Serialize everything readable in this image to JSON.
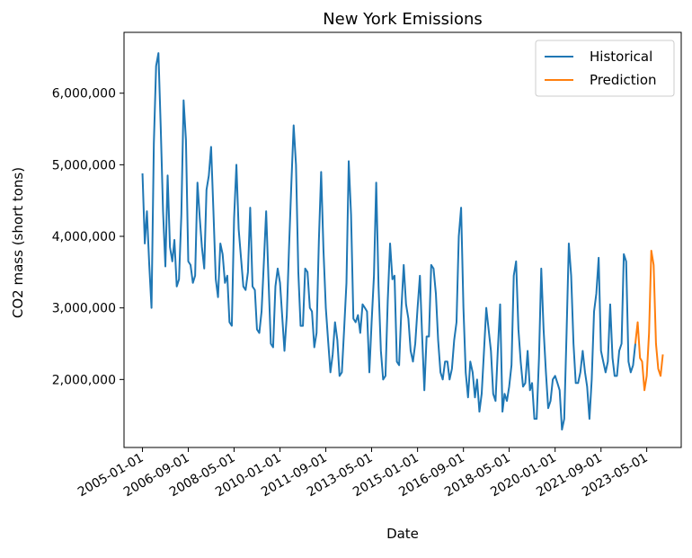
{
  "colors": {
    "historical": "#1f77b4",
    "prediction": "#ff7f0e",
    "axis": "#000000",
    "legend_border": "#cccccc",
    "background": "#ffffff"
  },
  "chart_data": {
    "type": "line",
    "title": "New York Emissions",
    "xlabel": "Date",
    "ylabel": "CO2 mass (short tons)",
    "grid": false,
    "legend_position": "top-right",
    "x_axis_kind": "date",
    "xlim": [
      "2004-05-01",
      "2024-08-01"
    ],
    "ylim": [
      1050000,
      6850000
    ],
    "x_ticks": [
      "2005-01-01",
      "2006-09-01",
      "2008-05-01",
      "2010-01-01",
      "2011-09-01",
      "2013-05-01",
      "2015-01-01",
      "2016-09-01",
      "2018-05-01",
      "2020-01-01",
      "2021-09-01",
      "2023-05-01"
    ],
    "y_ticks": [
      2000000,
      3000000,
      4000000,
      5000000,
      6000000
    ],
    "y_tick_labels": [
      "2,000,000",
      "3,000,000",
      "4,000,000",
      "5,000,000",
      "6,000,000"
    ],
    "series": [
      {
        "name": "Historical",
        "color": "#1f77b4",
        "points": [
          [
            "2005-01-01",
            4880000
          ],
          [
            "2005-02-01",
            3900000
          ],
          [
            "2005-03-01",
            4350000
          ],
          [
            "2005-04-01",
            3600000
          ],
          [
            "2005-05-01",
            3000000
          ],
          [
            "2005-06-01",
            5300000
          ],
          [
            "2005-07-01",
            6380000
          ],
          [
            "2005-08-01",
            6560000
          ],
          [
            "2005-09-01",
            5500000
          ],
          [
            "2005-10-01",
            4350000
          ],
          [
            "2005-11-01",
            3580000
          ],
          [
            "2005-12-01",
            4850000
          ],
          [
            "2006-01-01",
            3850000
          ],
          [
            "2006-02-01",
            3650000
          ],
          [
            "2006-03-01",
            3950000
          ],
          [
            "2006-04-01",
            3300000
          ],
          [
            "2006-05-01",
            3400000
          ],
          [
            "2006-06-01",
            4300000
          ],
          [
            "2006-07-01",
            5900000
          ],
          [
            "2006-08-01",
            5350000
          ],
          [
            "2006-09-01",
            3650000
          ],
          [
            "2006-10-01",
            3600000
          ],
          [
            "2006-11-01",
            3350000
          ],
          [
            "2006-12-01",
            3450000
          ],
          [
            "2007-01-01",
            4750000
          ],
          [
            "2007-02-01",
            4250000
          ],
          [
            "2007-03-01",
            3850000
          ],
          [
            "2007-04-01",
            3550000
          ],
          [
            "2007-05-01",
            4650000
          ],
          [
            "2007-06-01",
            4850000
          ],
          [
            "2007-07-01",
            5250000
          ],
          [
            "2007-08-01",
            4350000
          ],
          [
            "2007-09-01",
            3400000
          ],
          [
            "2007-10-01",
            3150000
          ],
          [
            "2007-11-01",
            3900000
          ],
          [
            "2007-12-01",
            3750000
          ],
          [
            "2008-01-01",
            3350000
          ],
          [
            "2008-02-01",
            3450000
          ],
          [
            "2008-03-01",
            2800000
          ],
          [
            "2008-04-01",
            2750000
          ],
          [
            "2008-05-01",
            4250000
          ],
          [
            "2008-06-01",
            5000000
          ],
          [
            "2008-07-01",
            4100000
          ],
          [
            "2008-08-01",
            3700000
          ],
          [
            "2008-09-01",
            3300000
          ],
          [
            "2008-10-01",
            3250000
          ],
          [
            "2008-11-01",
            3500000
          ],
          [
            "2008-12-01",
            4400000
          ],
          [
            "2009-01-01",
            3300000
          ],
          [
            "2009-02-01",
            3250000
          ],
          [
            "2009-03-01",
            2700000
          ],
          [
            "2009-04-01",
            2650000
          ],
          [
            "2009-05-01",
            2950000
          ],
          [
            "2009-06-01",
            3650000
          ],
          [
            "2009-07-01",
            4350000
          ],
          [
            "2009-08-01",
            3400000
          ],
          [
            "2009-09-01",
            2500000
          ],
          [
            "2009-10-01",
            2450000
          ],
          [
            "2009-11-01",
            3300000
          ],
          [
            "2009-12-01",
            3550000
          ],
          [
            "2010-01-01",
            3350000
          ],
          [
            "2010-02-01",
            2850000
          ],
          [
            "2010-03-01",
            2400000
          ],
          [
            "2010-04-01",
            2900000
          ],
          [
            "2010-05-01",
            3850000
          ],
          [
            "2010-06-01",
            4750000
          ],
          [
            "2010-07-01",
            5550000
          ],
          [
            "2010-08-01",
            5000000
          ],
          [
            "2010-09-01",
            3500000
          ],
          [
            "2010-10-01",
            2750000
          ],
          [
            "2010-11-01",
            2750000
          ],
          [
            "2010-12-01",
            3550000
          ],
          [
            "2011-01-01",
            3500000
          ],
          [
            "2011-02-01",
            3000000
          ],
          [
            "2011-03-01",
            2950000
          ],
          [
            "2011-04-01",
            2450000
          ],
          [
            "2011-05-01",
            2650000
          ],
          [
            "2011-06-01",
            3950000
          ],
          [
            "2011-07-01",
            4900000
          ],
          [
            "2011-08-01",
            3800000
          ],
          [
            "2011-09-01",
            3000000
          ],
          [
            "2011-10-01",
            2550000
          ],
          [
            "2011-11-01",
            2100000
          ],
          [
            "2011-12-01",
            2350000
          ],
          [
            "2012-01-01",
            2800000
          ],
          [
            "2012-02-01",
            2550000
          ],
          [
            "2012-03-01",
            2050000
          ],
          [
            "2012-04-01",
            2100000
          ],
          [
            "2012-05-01",
            2700000
          ],
          [
            "2012-06-01",
            3350000
          ],
          [
            "2012-07-01",
            5050000
          ],
          [
            "2012-08-01",
            4300000
          ],
          [
            "2012-09-01",
            2850000
          ],
          [
            "2012-10-01",
            2800000
          ],
          [
            "2012-11-01",
            2900000
          ],
          [
            "2012-12-01",
            2650000
          ],
          [
            "2013-01-01",
            3050000
          ],
          [
            "2013-02-01",
            3000000
          ],
          [
            "2013-03-01",
            2950000
          ],
          [
            "2013-04-01",
            2100000
          ],
          [
            "2013-05-01",
            2800000
          ],
          [
            "2013-06-01",
            3450000
          ],
          [
            "2013-07-01",
            4750000
          ],
          [
            "2013-08-01",
            3300000
          ],
          [
            "2013-09-01",
            2400000
          ],
          [
            "2013-10-01",
            2000000
          ],
          [
            "2013-11-01",
            2050000
          ],
          [
            "2013-12-01",
            3100000
          ],
          [
            "2014-01-01",
            3900000
          ],
          [
            "2014-02-01",
            3400000
          ],
          [
            "2014-03-01",
            3450000
          ],
          [
            "2014-04-01",
            2250000
          ],
          [
            "2014-05-01",
            2200000
          ],
          [
            "2014-06-01",
            3000000
          ],
          [
            "2014-07-01",
            3600000
          ],
          [
            "2014-08-01",
            3050000
          ],
          [
            "2014-09-01",
            2850000
          ],
          [
            "2014-10-01",
            2400000
          ],
          [
            "2014-11-01",
            2250000
          ],
          [
            "2014-12-01",
            2500000
          ],
          [
            "2015-01-01",
            3000000
          ],
          [
            "2015-02-01",
            3450000
          ],
          [
            "2015-03-01",
            2650000
          ],
          [
            "2015-04-01",
            1850000
          ],
          [
            "2015-05-01",
            2600000
          ],
          [
            "2015-06-01",
            2600000
          ],
          [
            "2015-07-01",
            3600000
          ],
          [
            "2015-08-01",
            3550000
          ],
          [
            "2015-09-01",
            3200000
          ],
          [
            "2015-10-01",
            2550000
          ],
          [
            "2015-11-01",
            2100000
          ],
          [
            "2015-12-01",
            2000000
          ],
          [
            "2016-01-01",
            2250000
          ],
          [
            "2016-02-01",
            2250000
          ],
          [
            "2016-03-01",
            2000000
          ],
          [
            "2016-04-01",
            2150000
          ],
          [
            "2016-05-01",
            2550000
          ],
          [
            "2016-06-01",
            2800000
          ],
          [
            "2016-07-01",
            4000000
          ],
          [
            "2016-08-01",
            4400000
          ],
          [
            "2016-09-01",
            3000000
          ],
          [
            "2016-10-01",
            2100000
          ],
          [
            "2016-11-01",
            1750000
          ],
          [
            "2016-12-01",
            2250000
          ],
          [
            "2017-01-01",
            2100000
          ],
          [
            "2017-02-01",
            1750000
          ],
          [
            "2017-03-01",
            2000000
          ],
          [
            "2017-04-01",
            1550000
          ],
          [
            "2017-05-01",
            1800000
          ],
          [
            "2017-06-01",
            2400000
          ],
          [
            "2017-07-01",
            3000000
          ],
          [
            "2017-08-01",
            2700000
          ],
          [
            "2017-09-01",
            2400000
          ],
          [
            "2017-10-01",
            1800000
          ],
          [
            "2017-11-01",
            1700000
          ],
          [
            "2017-12-01",
            2400000
          ],
          [
            "2018-01-01",
            3050000
          ],
          [
            "2018-02-01",
            1550000
          ],
          [
            "2018-03-01",
            1800000
          ],
          [
            "2018-04-01",
            1700000
          ],
          [
            "2018-05-01",
            1900000
          ],
          [
            "2018-06-01",
            2200000
          ],
          [
            "2018-07-01",
            3450000
          ],
          [
            "2018-08-01",
            3650000
          ],
          [
            "2018-09-01",
            2700000
          ],
          [
            "2018-10-01",
            2250000
          ],
          [
            "2018-11-01",
            1900000
          ],
          [
            "2018-12-01",
            1950000
          ],
          [
            "2019-01-01",
            2400000
          ],
          [
            "2019-02-01",
            1850000
          ],
          [
            "2019-03-01",
            1950000
          ],
          [
            "2019-04-01",
            1450000
          ],
          [
            "2019-05-01",
            1450000
          ],
          [
            "2019-06-01",
            2300000
          ],
          [
            "2019-07-01",
            3550000
          ],
          [
            "2019-08-01",
            2700000
          ],
          [
            "2019-09-01",
            2100000
          ],
          [
            "2019-10-01",
            1600000
          ],
          [
            "2019-11-01",
            1700000
          ],
          [
            "2019-12-01",
            2000000
          ],
          [
            "2020-01-01",
            2050000
          ],
          [
            "2020-02-01",
            1950000
          ],
          [
            "2020-03-01",
            1850000
          ],
          [
            "2020-04-01",
            1300000
          ],
          [
            "2020-05-01",
            1450000
          ],
          [
            "2020-06-01",
            2650000
          ],
          [
            "2020-07-01",
            3900000
          ],
          [
            "2020-08-01",
            3450000
          ],
          [
            "2020-09-01",
            2500000
          ],
          [
            "2020-10-01",
            1950000
          ],
          [
            "2020-11-01",
            1950000
          ],
          [
            "2020-12-01",
            2100000
          ],
          [
            "2021-01-01",
            2400000
          ],
          [
            "2021-02-01",
            2100000
          ],
          [
            "2021-03-01",
            1900000
          ],
          [
            "2021-04-01",
            1450000
          ],
          [
            "2021-05-01",
            2000000
          ],
          [
            "2021-06-01",
            2950000
          ],
          [
            "2021-07-01",
            3200000
          ],
          [
            "2021-08-01",
            3700000
          ],
          [
            "2021-09-01",
            2400000
          ],
          [
            "2021-10-01",
            2250000
          ],
          [
            "2021-11-01",
            2100000
          ],
          [
            "2021-12-01",
            2250000
          ],
          [
            "2022-01-01",
            3050000
          ],
          [
            "2022-02-01",
            2300000
          ],
          [
            "2022-03-01",
            2050000
          ],
          [
            "2022-04-01",
            2050000
          ],
          [
            "2022-05-01",
            2400000
          ],
          [
            "2022-06-01",
            2500000
          ],
          [
            "2022-07-01",
            3750000
          ],
          [
            "2022-08-01",
            3650000
          ],
          [
            "2022-09-01",
            2250000
          ],
          [
            "2022-10-01",
            2100000
          ],
          [
            "2022-11-01",
            2200000
          ],
          [
            "2022-12-01",
            2500000
          ]
        ]
      },
      {
        "name": "Prediction",
        "color": "#ff7f0e",
        "points": [
          [
            "2022-12-01",
            2500000
          ],
          [
            "2023-01-01",
            2800000
          ],
          [
            "2023-02-01",
            2300000
          ],
          [
            "2023-03-01",
            2250000
          ],
          [
            "2023-04-01",
            1850000
          ],
          [
            "2023-05-01",
            2050000
          ],
          [
            "2023-06-01",
            2650000
          ],
          [
            "2023-07-01",
            3800000
          ],
          [
            "2023-08-01",
            3600000
          ],
          [
            "2023-09-01",
            2500000
          ],
          [
            "2023-10-01",
            2150000
          ],
          [
            "2023-11-01",
            2050000
          ],
          [
            "2023-12-01",
            2350000
          ]
        ]
      }
    ]
  }
}
